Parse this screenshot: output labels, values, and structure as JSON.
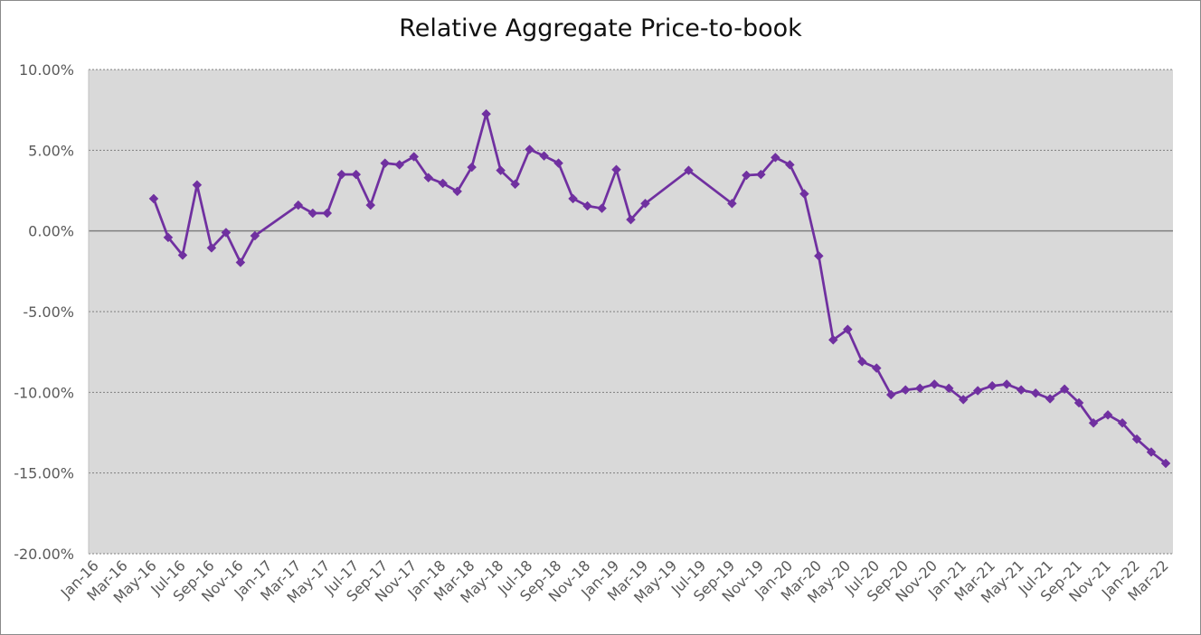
{
  "chart_data": {
    "type": "line",
    "title": "Relative Aggregate Price-to-book",
    "xlabel": "",
    "ylabel": "",
    "ylim": [
      -20,
      10
    ],
    "yticks": [
      10,
      5,
      0,
      -5,
      -10,
      -15,
      -20
    ],
    "ytick_labels": [
      "10.00%",
      "5.00%",
      "0.00%",
      "-5.00%",
      "-10.00%",
      "-15.00%",
      "-20.00%"
    ],
    "xlim": [
      "2016-01",
      "2022-03"
    ],
    "xtick_labels": [
      "Jan-16",
      "Mar-16",
      "May-16",
      "Jul-16",
      "Sep-16",
      "Nov-16",
      "Jan-17",
      "Mar-17",
      "May-17",
      "Jul-17",
      "Sep-17",
      "Nov-17",
      "Jan-18",
      "Mar-18",
      "May-18",
      "Jul-18",
      "Sep-18",
      "Nov-18",
      "Jan-19",
      "Mar-19",
      "May-19",
      "Jul-19",
      "Sep-19",
      "Nov-19",
      "Jan-20",
      "Mar-20",
      "May-20",
      "Jul-20",
      "Sep-20",
      "Nov-20",
      "Jan-21",
      "Mar-21",
      "May-21",
      "Jul-21",
      "Sep-21",
      "Nov-21",
      "Jan-22",
      "Mar-22"
    ],
    "grid": true,
    "legend": "none",
    "series": [
      {
        "color": "#7030a0",
        "marker": "diamond",
        "points": [
          {
            "x": "2016-05",
            "y": 2.0
          },
          {
            "x": "2016-06",
            "y": -0.4
          },
          {
            "x": "2016-07",
            "y": -1.5
          },
          {
            "x": "2016-08",
            "y": 2.85
          },
          {
            "x": "2016-09",
            "y": -1.05
          },
          {
            "x": "2016-10",
            "y": -0.1
          },
          {
            "x": "2016-11",
            "y": -1.95
          },
          {
            "x": "2016-12",
            "y": -0.3
          },
          {
            "x": "2017-03",
            "y": 1.6
          },
          {
            "x": "2017-04",
            "y": 1.1
          },
          {
            "x": "2017-05",
            "y": 1.1
          },
          {
            "x": "2017-06",
            "y": 3.5
          },
          {
            "x": "2017-07",
            "y": 3.5
          },
          {
            "x": "2017-08",
            "y": 1.6
          },
          {
            "x": "2017-09",
            "y": 4.2
          },
          {
            "x": "2017-10",
            "y": 4.1
          },
          {
            "x": "2017-11",
            "y": 4.6
          },
          {
            "x": "2017-12",
            "y": 3.3
          },
          {
            "x": "2018-01",
            "y": 2.95
          },
          {
            "x": "2018-02",
            "y": 2.45
          },
          {
            "x": "2018-03",
            "y": 3.95
          },
          {
            "x": "2018-04",
            "y": 7.25
          },
          {
            "x": "2018-05",
            "y": 3.75
          },
          {
            "x": "2018-06",
            "y": 2.9
          },
          {
            "x": "2018-07",
            "y": 5.05
          },
          {
            "x": "2018-08",
            "y": 4.65
          },
          {
            "x": "2018-09",
            "y": 4.2
          },
          {
            "x": "2018-10",
            "y": 2.0
          },
          {
            "x": "2018-11",
            "y": 1.55
          },
          {
            "x": "2018-12",
            "y": 1.4
          },
          {
            "x": "2019-01",
            "y": 3.8
          },
          {
            "x": "2019-02",
            "y": 0.7
          },
          {
            "x": "2019-03",
            "y": 1.7
          },
          {
            "x": "2019-06",
            "y": 3.75
          },
          {
            "x": "2019-09",
            "y": 1.7
          },
          {
            "x": "2019-10",
            "y": 3.45
          },
          {
            "x": "2019-11",
            "y": 3.5
          },
          {
            "x": "2019-12",
            "y": 4.55
          },
          {
            "x": "2020-01",
            "y": 4.1
          },
          {
            "x": "2020-02",
            "y": 2.3
          },
          {
            "x": "2020-03",
            "y": -1.55
          },
          {
            "x": "2020-04",
            "y": -6.75
          },
          {
            "x": "2020-05",
            "y": -6.1
          },
          {
            "x": "2020-06",
            "y": -8.1
          },
          {
            "x": "2020-07",
            "y": -8.5
          },
          {
            "x": "2020-08",
            "y": -10.15
          },
          {
            "x": "2020-09",
            "y": -9.85
          },
          {
            "x": "2020-10",
            "y": -9.75
          },
          {
            "x": "2020-11",
            "y": -9.5
          },
          {
            "x": "2020-12",
            "y": -9.75
          },
          {
            "x": "2021-01",
            "y": -10.45
          },
          {
            "x": "2021-02",
            "y": -9.9
          },
          {
            "x": "2021-03",
            "y": -9.6
          },
          {
            "x": "2021-04",
            "y": -9.5
          },
          {
            "x": "2021-05",
            "y": -9.85
          },
          {
            "x": "2021-06",
            "y": -10.05
          },
          {
            "x": "2021-07",
            "y": -10.4
          },
          {
            "x": "2021-08",
            "y": -9.8
          },
          {
            "x": "2021-09",
            "y": -10.65
          },
          {
            "x": "2021-10",
            "y": -11.9
          },
          {
            "x": "2021-11",
            "y": -11.4
          },
          {
            "x": "2021-12",
            "y": -11.9
          },
          {
            "x": "2022-01",
            "y": -12.9
          },
          {
            "x": "2022-02",
            "y": -13.7
          },
          {
            "x": "2022-03",
            "y": -14.4
          }
        ]
      }
    ]
  }
}
